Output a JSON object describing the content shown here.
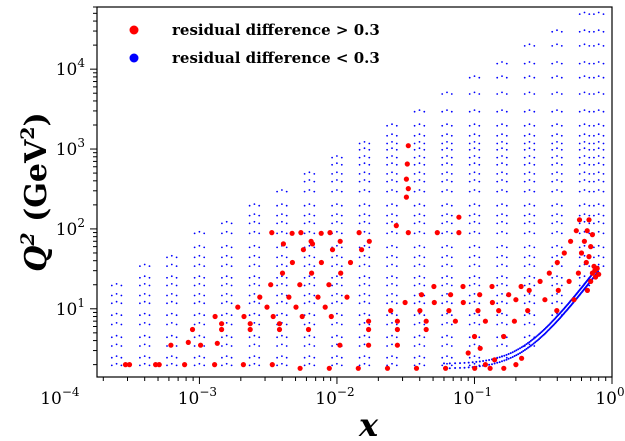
{
  "chart_data": {
    "type": "scatter",
    "xlabel": "x",
    "ylabel": {
      "main": "Q",
      "sup": "2",
      "unit_open": " (GeV",
      "unit_sup": "2",
      "unit_close": ")"
    },
    "xscale": "log",
    "yscale": "log",
    "xlim": [
      0.00018,
      1.0
    ],
    "ylim": [
      1.4,
      60000
    ],
    "xticks": [
      {
        "value": 0.0001,
        "base": "10",
        "exp": "−4"
      },
      {
        "value": 0.001,
        "base": "10",
        "exp": "−3"
      },
      {
        "value": 0.01,
        "base": "10",
        "exp": "−2"
      },
      {
        "value": 0.1,
        "base": "10",
        "exp": "−1"
      },
      {
        "value": 1.0,
        "base": "10",
        "exp": "0"
      }
    ],
    "yticks": [
      {
        "value": 10,
        "base": "10",
        "exp": "1"
      },
      {
        "value": 100,
        "base": "10",
        "exp": "2"
      },
      {
        "value": 1000,
        "base": "10",
        "exp": "3"
      },
      {
        "value": 10000,
        "base": "10",
        "exp": "4"
      }
    ],
    "grid": false,
    "legend": {
      "position": "top-left"
    },
    "series": [
      {
        "name": "residual difference > 0.3",
        "color": "#ff0000",
        "marker": "large-dot",
        "points": [
          [
            0.00029,
            2.0
          ],
          [
            0.00031,
            2.0
          ],
          [
            0.00048,
            2.0
          ],
          [
            0.00051,
            2.0
          ],
          [
            0.00078,
            2.0
          ],
          [
            0.00129,
            2.0
          ],
          [
            0.00209,
            2.0
          ],
          [
            0.00339,
            2.0
          ],
          [
            0.00062,
            3.5
          ],
          [
            0.00102,
            3.5
          ],
          [
            0.00083,
            3.8
          ],
          [
            0.00135,
            3.7
          ],
          [
            0.00089,
            5.5
          ],
          [
            0.00145,
            5.5
          ],
          [
            0.00234,
            5.5
          ],
          [
            0.00382,
            5.5
          ],
          [
            0.00621,
            5.5
          ],
          [
            0.00145,
            6.5
          ],
          [
            0.00234,
            6.5
          ],
          [
            0.00382,
            6.5
          ],
          [
            0.0013,
            8.0
          ],
          [
            0.00211,
            8.0
          ],
          [
            0.00344,
            8.0
          ],
          [
            0.00559,
            8.0
          ],
          [
            0.0091,
            8.0
          ],
          [
            0.0019,
            10.5
          ],
          [
            0.0031,
            10.5
          ],
          [
            0.00504,
            10.5
          ],
          [
            0.00821,
            10.5
          ],
          [
            0.00275,
            14.0
          ],
          [
            0.00447,
            14.0
          ],
          [
            0.00728,
            14.0
          ],
          [
            0.01184,
            14.0
          ],
          [
            0.0033,
            20.0
          ],
          [
            0.00537,
            20.0
          ],
          [
            0.00874,
            20.0
          ],
          [
            0.00402,
            28.0
          ],
          [
            0.00654,
            28.0
          ],
          [
            0.01064,
            28.0
          ],
          [
            0.00474,
            38.0
          ],
          [
            0.00771,
            38.0
          ],
          [
            0.01254,
            38.0
          ],
          [
            0.0057,
            55.0
          ],
          [
            0.00929,
            55.0
          ],
          [
            0.01511,
            55.0
          ],
          [
            0.00649,
            70.0
          ],
          [
            0.01056,
            70.0
          ],
          [
            0.01718,
            70.0
          ],
          [
            0.00336,
            90.0
          ],
          [
            0.00547,
            90.0
          ],
          [
            0.0089,
            90.0
          ],
          [
            0.01448,
            90.0
          ],
          [
            0.00408,
            65.0
          ],
          [
            0.00664,
            65.0
          ],
          [
            0.00472,
            88.0
          ],
          [
            0.00768,
            88.0
          ],
          [
            0.033,
            90.0
          ],
          [
            0.0537,
            90.0
          ],
          [
            0.027,
            110.0
          ],
          [
            0.032,
            250.0
          ],
          [
            0.033,
            320.0
          ],
          [
            0.032,
            420.0
          ],
          [
            0.033,
            1100.0
          ],
          [
            0.0325,
            650.0
          ],
          [
            0.077,
            140.0
          ],
          [
            0.077,
            90.0
          ],
          [
            0.0054,
            1.8
          ],
          [
            0.0088,
            1.8
          ],
          [
            0.0143,
            1.8
          ],
          [
            0.0233,
            1.8
          ],
          [
            0.0379,
            1.8
          ],
          [
            0.0617,
            1.8
          ],
          [
            0.1003,
            1.8
          ],
          [
            0.1633,
            1.8
          ],
          [
            0.0105,
            3.5
          ],
          [
            0.017,
            3.5
          ],
          [
            0.0275,
            3.5
          ],
          [
            0.017,
            5.5
          ],
          [
            0.0275,
            5.5
          ],
          [
            0.0446,
            5.5
          ],
          [
            0.017,
            7.0
          ],
          [
            0.0275,
            7.0
          ],
          [
            0.0446,
            7.0
          ],
          [
            0.0727,
            7.0
          ],
          [
            0.0246,
            9.5
          ],
          [
            0.0401,
            9.5
          ],
          [
            0.0652,
            9.5
          ],
          [
            0.1061,
            9.5
          ],
          [
            0.0313,
            12.0
          ],
          [
            0.051,
            12.0
          ],
          [
            0.083,
            12.0
          ],
          [
            0.135,
            12.0
          ],
          [
            0.0412,
            15.0
          ],
          [
            0.0671,
            15.0
          ],
          [
            0.1091,
            15.0
          ],
          [
            0.1775,
            15.0
          ],
          [
            0.0507,
            19.0
          ],
          [
            0.0825,
            19.0
          ],
          [
            0.1342,
            19.0
          ],
          [
            0.2184,
            19.0
          ],
          [
            0.1,
            4.5
          ],
          [
            0.163,
            4.5
          ],
          [
            0.12,
            7.0
          ],
          [
            0.195,
            7.0
          ],
          [
            0.15,
            9.5
          ],
          [
            0.244,
            9.5
          ],
          [
            0.397,
            9.5
          ],
          [
            0.2,
            13.0
          ],
          [
            0.325,
            13.0
          ],
          [
            0.529,
            13.0
          ],
          [
            0.25,
            17.0
          ],
          [
            0.407,
            17.0
          ],
          [
            0.662,
            17.0
          ],
          [
            0.3,
            22.0
          ],
          [
            0.488,
            22.0
          ],
          [
            0.7,
            22.0
          ],
          [
            0.35,
            28.0
          ],
          [
            0.57,
            28.0
          ],
          [
            0.72,
            28.0
          ],
          [
            0.4,
            38.0
          ],
          [
            0.65,
            38.0
          ],
          [
            0.74,
            34.0
          ],
          [
            0.45,
            50.0
          ],
          [
            0.6,
            50.0
          ],
          [
            0.68,
            45.0
          ],
          [
            0.5,
            70.0
          ],
          [
            0.63,
            70.0
          ],
          [
            0.7,
            60.0
          ],
          [
            0.55,
            95.0
          ],
          [
            0.66,
            95.0
          ],
          [
            0.72,
            85.0
          ],
          [
            0.58,
            130.0
          ],
          [
            0.68,
            130.0
          ],
          [
            0.75,
            30.0
          ],
          [
            0.78,
            32.0
          ],
          [
            0.8,
            27.0
          ],
          [
            0.76,
            25.0
          ],
          [
            0.12,
            2.0
          ],
          [
            0.13,
            1.8
          ],
          [
            0.14,
            2.3
          ],
          [
            0.2,
            2.0
          ],
          [
            0.22,
            2.4
          ],
          [
            0.09,
            2.8
          ],
          [
            0.11,
            3.2
          ]
        ]
      },
      {
        "name": "residual difference < 0.3",
        "color": "#0000ff",
        "marker": "small-dot",
        "density": "dense grid of small points filling the kinematic region",
        "x_bins": [
          0.00025,
          0.0004,
          0.00063,
          0.001,
          0.00158,
          0.00251,
          0.00398,
          0.00631,
          0.01,
          0.01585,
          0.02512,
          0.03981,
          0.0631,
          0.1,
          0.15849,
          0.25119,
          0.39811,
          0.63096,
          0.8
        ],
        "q2_bins": [
          2.0,
          2.5,
          3.5,
          4.5,
          6.5,
          8.5,
          12.0,
          15.0,
          20.0,
          25.0,
          35.0,
          45.0,
          60.0,
          90.0,
          120.0,
          150.0,
          200.0,
          300.0,
          400.0,
          500.0,
          650.0,
          800.0,
          1000.0,
          1200.0,
          1500.0,
          2000.0,
          3000.0,
          5000.0,
          8000.0,
          12000.0,
          20000.0,
          30000.0,
          50000.0
        ]
      }
    ]
  }
}
